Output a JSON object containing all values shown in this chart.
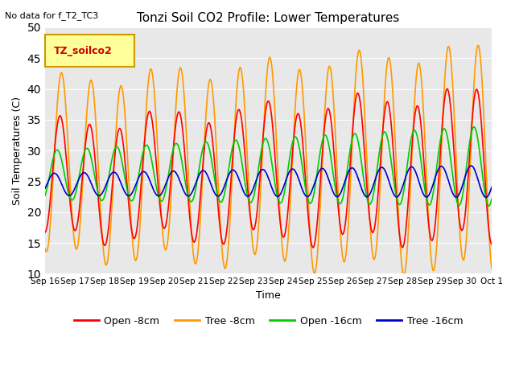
{
  "title": "Tonzi Soil CO2 Profile: Lower Temperatures",
  "subtitle": "No data for f_T2_TC3",
  "xlabel": "Time",
  "ylabel": "Soil Temperatures (C)",
  "ylim": [
    10,
    50
  ],
  "yticks": [
    10,
    15,
    20,
    25,
    30,
    35,
    40,
    45,
    50
  ],
  "background_color": "#e8e8e8",
  "legend_box_label": "TZ_soilco2",
  "legend_box_color": "#ffff99",
  "legend_box_border": "#cc9900",
  "series_colors": {
    "open_8cm": "#ff0000",
    "tree_8cm": "#ff9900",
    "open_16cm": "#00cc00",
    "tree_16cm": "#0000cc"
  },
  "xtick_labels": [
    "Sep 16",
    "Sep 17",
    "Sep 18",
    "Sep 19",
    "Sep 20",
    "Sep 21",
    "Sep 22",
    "Sep 23",
    "Sep 24",
    "Sep 25",
    "Sep 26",
    "Sep 27",
    "Sep 28",
    "Sep 29",
    "Sep 30",
    "Oct 1"
  ],
  "n_points": 480,
  "n_days": 15
}
